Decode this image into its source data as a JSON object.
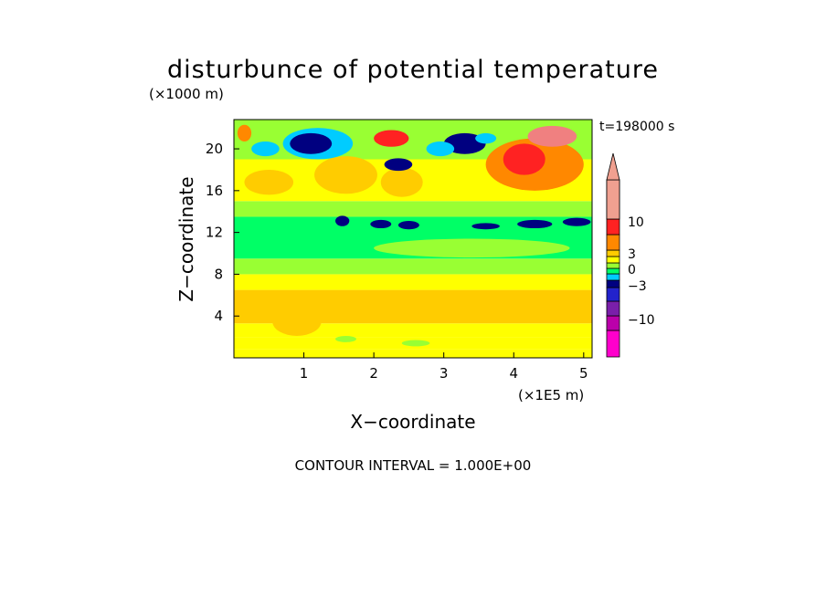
{
  "chart_data": {
    "type": "heatmap",
    "title": "disturbunce of potential temperature",
    "xlabel": "X−coordinate",
    "ylabel": "Z−coordinate",
    "x_unit": "(×1E5 m)",
    "y_unit": "(×1000 m)",
    "time_label": "t=198000 s",
    "footer": "CONTOUR INTERVAL = 1.000E+00",
    "xlim": [
      0,
      5.12
    ],
    "ylim": [
      0,
      22.8
    ],
    "x_ticks": [
      "1",
      "2",
      "3",
      "4",
      "5"
    ],
    "y_ticks": [
      "4",
      "8",
      "12",
      "16",
      "20"
    ],
    "colorbar": {
      "levels": [
        -15,
        -10,
        -8,
        -5,
        -3,
        -2,
        -1,
        0,
        1,
        2,
        3,
        5,
        10,
        15
      ],
      "colors": [
        "#ff00cc",
        "#bb00aa",
        "#7a1faa",
        "#2222cc",
        "#000080",
        "#00ccff",
        "#00ff66",
        "#99ff33",
        "#ffff00",
        "#ffcc00",
        "#ff8800",
        "#ff2222",
        "#f08080",
        "#f0a090"
      ],
      "tick_labels": [
        "10",
        "3",
        "0",
        "−3",
        "−10"
      ]
    },
    "bands": [
      {
        "z": [
          0.0,
          0.8
        ],
        "value": 1
      },
      {
        "z": [
          0.8,
          2.0
        ],
        "value": 1.5
      },
      {
        "z": [
          2.0,
          3.3
        ],
        "value": 1
      },
      {
        "z": [
          3.3,
          6.5
        ],
        "value": 2
      },
      {
        "z": [
          6.5,
          8.0
        ],
        "value": 1
      },
      {
        "z": [
          8.0,
          9.5
        ],
        "value": 0
      },
      {
        "z": [
          9.5,
          13.5
        ],
        "value": -1
      },
      {
        "z": [
          13.5,
          15.0
        ],
        "value": 0
      },
      {
        "z": [
          15.0,
          19.0
        ],
        "value": 1
      },
      {
        "z": [
          19.0,
          22.8
        ],
        "value": 0
      }
    ],
    "features": [
      {
        "x": 0.9,
        "z": 3.5,
        "rx": 0.35,
        "rz": 1.4,
        "value": 2
      },
      {
        "x": 3.7,
        "z": 4.8,
        "rx": 0.4,
        "rz": 1.0,
        "value": 2.5
      },
      {
        "x": 4.5,
        "z": 5.5,
        "rx": 0.25,
        "rz": 0.8,
        "value": 2
      },
      {
        "x": 1.6,
        "z": 1.8,
        "rx": 0.15,
        "rz": 0.3,
        "value": 0
      },
      {
        "x": 2.6,
        "z": 1.4,
        "rx": 0.2,
        "rz": 0.3,
        "value": 0
      },
      {
        "x": 3.4,
        "z": 10.5,
        "rx": 1.4,
        "rz": 0.9,
        "value": 0
      },
      {
        "x": 1.55,
        "z": 13.1,
        "rx": 0.1,
        "rz": 0.5,
        "value": -3
      },
      {
        "x": 2.1,
        "z": 12.8,
        "rx": 0.15,
        "rz": 0.4,
        "value": -3
      },
      {
        "x": 2.5,
        "z": 12.7,
        "rx": 0.15,
        "rz": 0.4,
        "value": -3
      },
      {
        "x": 3.6,
        "z": 12.6,
        "rx": 0.2,
        "rz": 0.3,
        "value": -3
      },
      {
        "x": 4.3,
        "z": 12.8,
        "rx": 0.25,
        "rz": 0.4,
        "value": -3
      },
      {
        "x": 4.9,
        "z": 13.0,
        "rx": 0.2,
        "rz": 0.4,
        "value": -3
      },
      {
        "x": 0.5,
        "z": 16.8,
        "rx": 0.35,
        "rz": 1.2,
        "value": 2
      },
      {
        "x": 1.6,
        "z": 17.5,
        "rx": 0.45,
        "rz": 1.8,
        "value": 2
      },
      {
        "x": 2.4,
        "z": 16.8,
        "rx": 0.3,
        "rz": 1.4,
        "value": 2
      },
      {
        "x": 4.3,
        "z": 18.5,
        "rx": 0.7,
        "rz": 2.5,
        "value": 3
      },
      {
        "x": 4.15,
        "z": 19.0,
        "rx": 0.3,
        "rz": 1.5,
        "value": 5
      },
      {
        "x": 4.55,
        "z": 21.2,
        "rx": 0.35,
        "rz": 1.0,
        "value": 10
      },
      {
        "x": 2.25,
        "z": 21.0,
        "rx": 0.25,
        "rz": 0.8,
        "value": 5
      },
      {
        "x": 0.15,
        "z": 21.5,
        "rx": 0.1,
        "rz": 0.8,
        "value": 3
      },
      {
        "x": 1.2,
        "z": 20.5,
        "rx": 0.5,
        "rz": 1.5,
        "value": -2
      },
      {
        "x": 1.1,
        "z": 20.5,
        "rx": 0.3,
        "rz": 1.0,
        "value": -3
      },
      {
        "x": 0.45,
        "z": 20.0,
        "rx": 0.2,
        "rz": 0.7,
        "value": -2
      },
      {
        "x": 2.35,
        "z": 18.5,
        "rx": 0.2,
        "rz": 0.6,
        "value": -3
      },
      {
        "x": 3.3,
        "z": 20.5,
        "rx": 0.3,
        "rz": 1.0,
        "value": -3
      },
      {
        "x": 2.95,
        "z": 20.0,
        "rx": 0.2,
        "rz": 0.7,
        "value": -2
      },
      {
        "x": 3.6,
        "z": 21.0,
        "rx": 0.15,
        "rz": 0.5,
        "value": -2
      }
    ]
  }
}
